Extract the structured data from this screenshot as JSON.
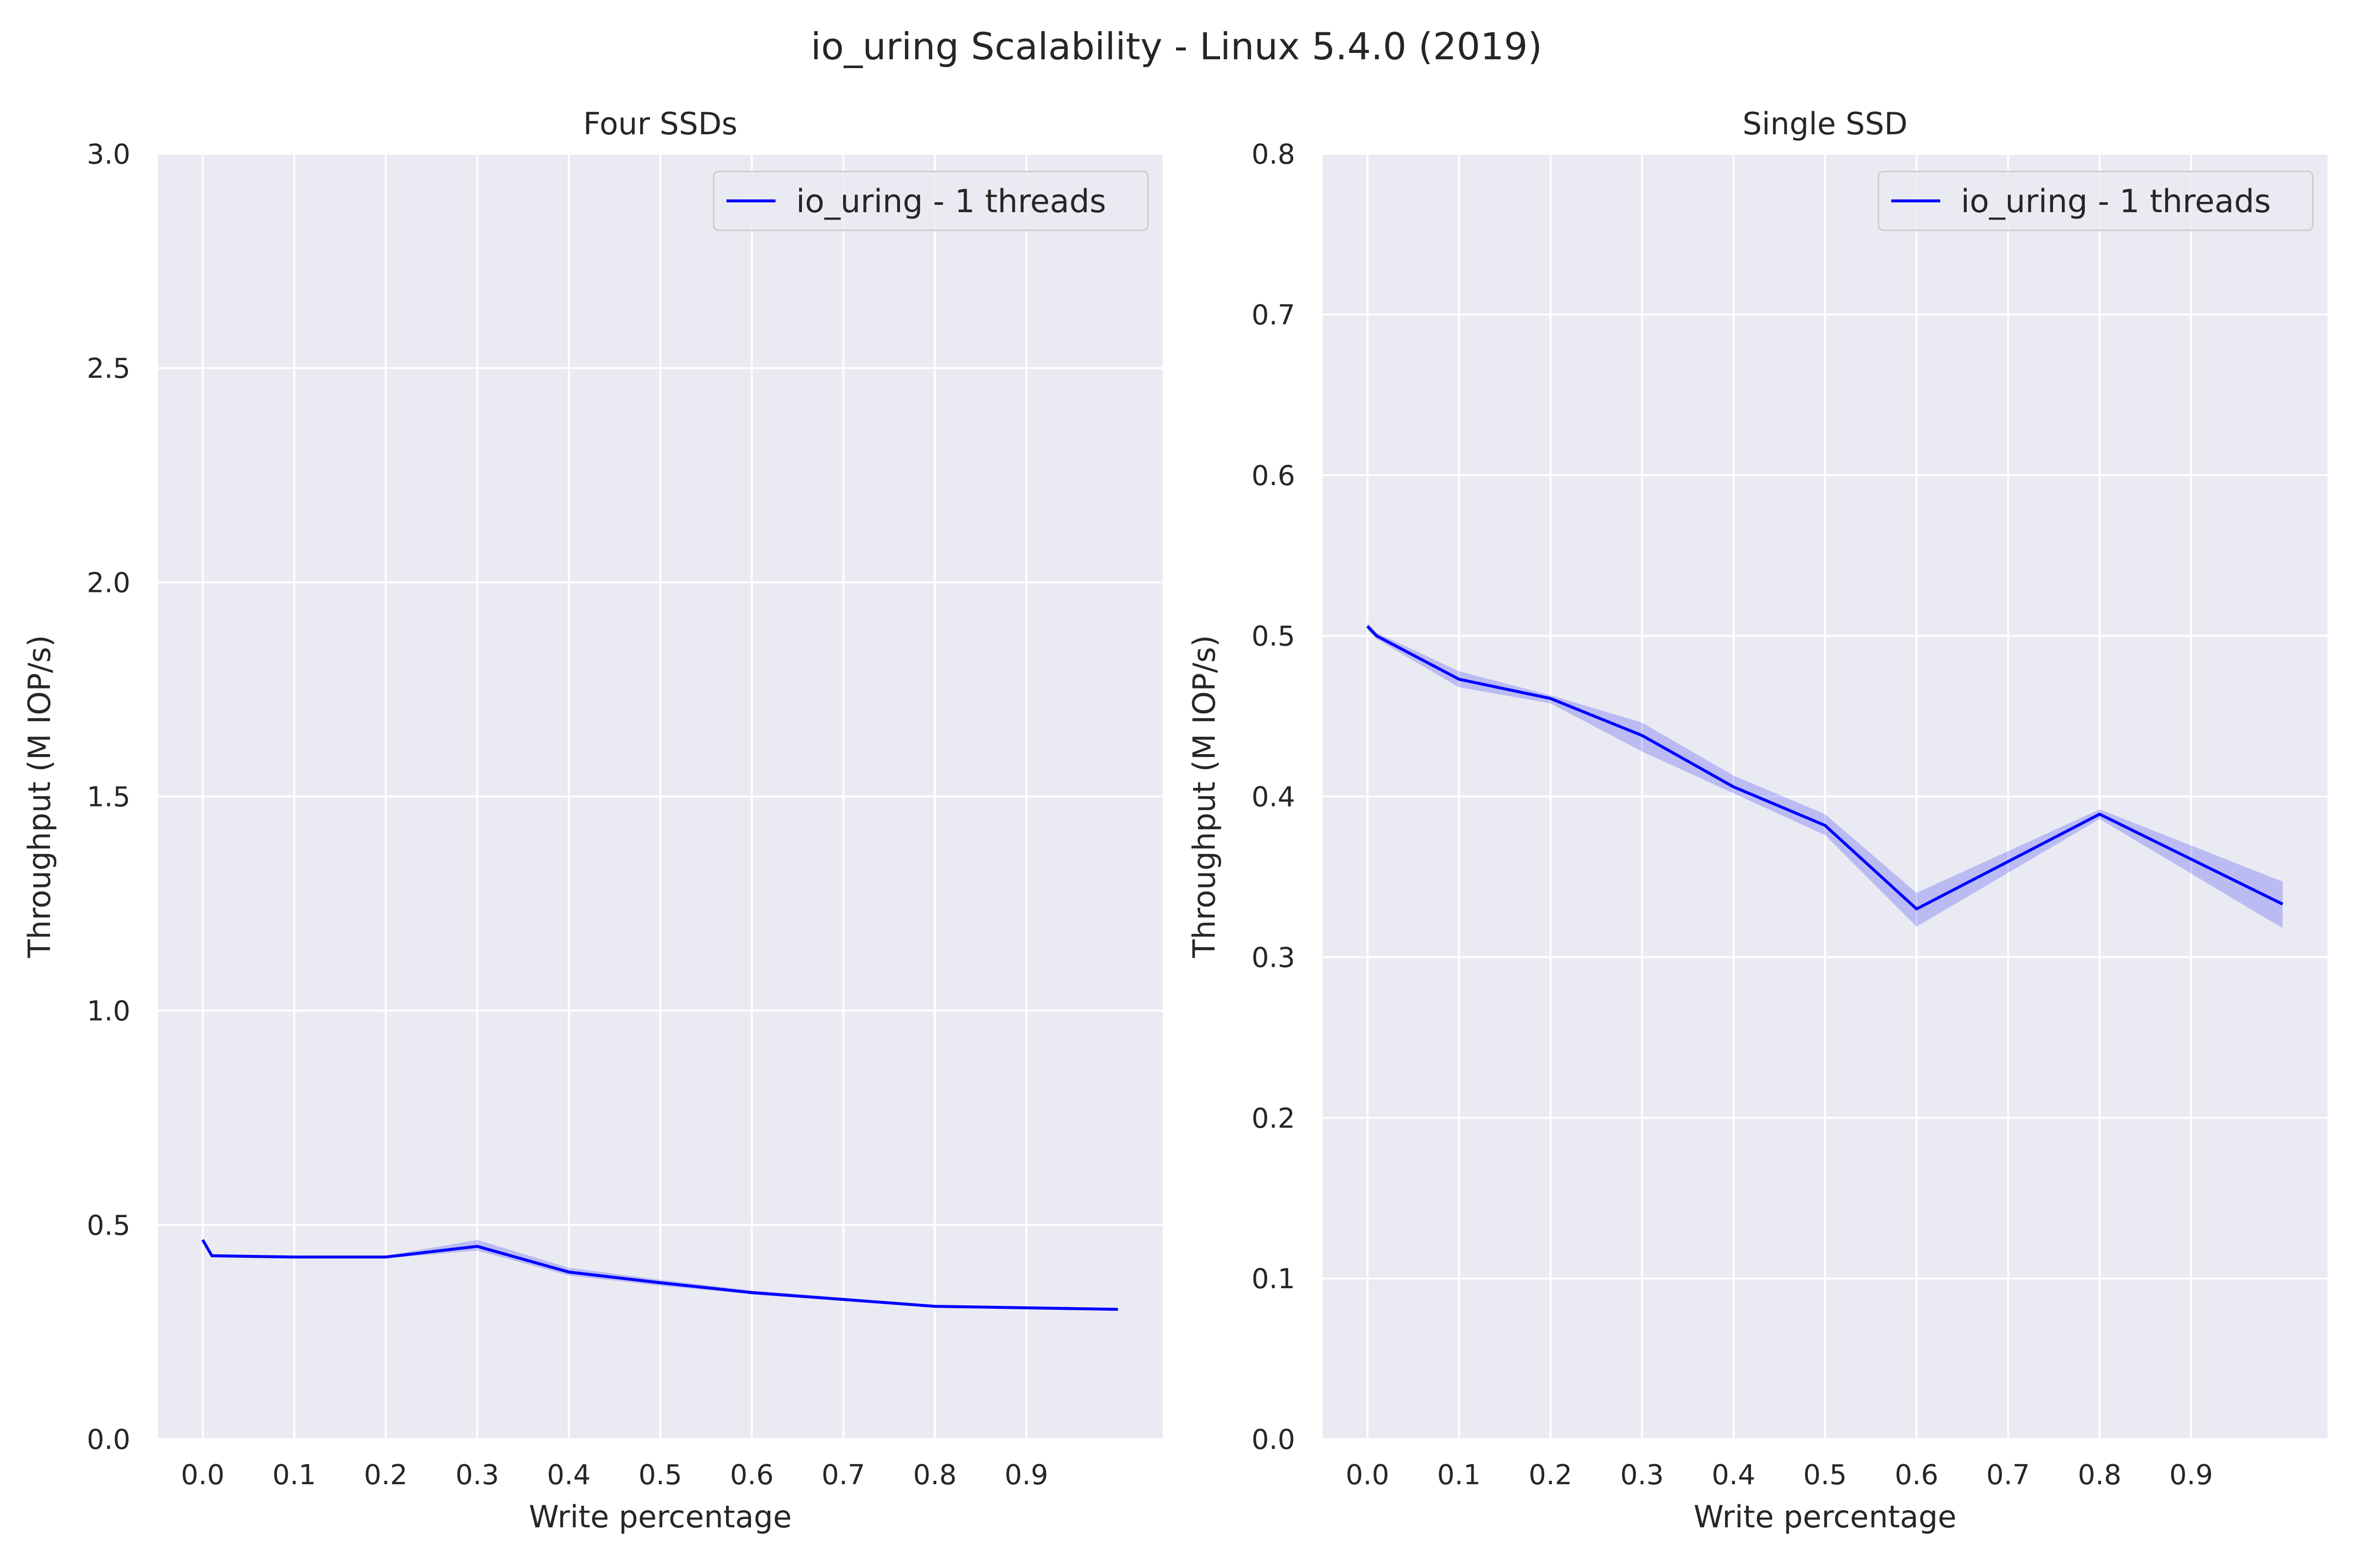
{
  "figure": {
    "title": "io_uring Scalability - Linux 5.4.0 (2019)"
  },
  "colors": {
    "plot_bg": "#eaeaf2",
    "grid": "#ffffff",
    "line": "#0000ff",
    "band": "#0000ff"
  },
  "chart_data": [
    {
      "type": "line",
      "title": "Four SSDs",
      "xlabel": "Write percentage",
      "ylabel": "Throughput (M IOP/s)",
      "xlim": [
        -0.049,
        1.049
      ],
      "ylim": [
        0,
        3.0
      ],
      "xticks": [
        "0.0",
        "0.1",
        "0.2",
        "0.3",
        "0.4",
        "0.5",
        "0.6",
        "0.7",
        "0.8",
        "0.9"
      ],
      "yticks": [
        "0.0",
        "0.5",
        "1.0",
        "1.5",
        "2.0",
        "2.5",
        "3.0"
      ],
      "grid": true,
      "legend_position": "top-right",
      "series": [
        {
          "name": "io_uring - 1 threads",
          "x": [
            0.0,
            0.01,
            0.1,
            0.2,
            0.3,
            0.4,
            0.5,
            0.6,
            0.8,
            1.0
          ],
          "y": [
            0.465,
            0.428,
            0.425,
            0.425,
            0.45,
            0.39,
            0.365,
            0.342,
            0.31,
            0.303
          ],
          "ci_low": [
            0.46,
            0.424,
            0.422,
            0.422,
            0.44,
            0.382,
            0.358,
            0.338,
            0.307,
            0.3
          ],
          "ci_high": [
            0.47,
            0.432,
            0.428,
            0.428,
            0.465,
            0.4,
            0.372,
            0.347,
            0.313,
            0.306
          ]
        }
      ]
    },
    {
      "type": "line",
      "title": "Single SSD",
      "xlabel": "Write percentage",
      "ylabel": "Throughput (M IOP/s)",
      "xlim": [
        -0.049,
        1.049
      ],
      "ylim": [
        0,
        0.8
      ],
      "xticks": [
        "0.0",
        "0.1",
        "0.2",
        "0.3",
        "0.4",
        "0.5",
        "0.6",
        "0.7",
        "0.8",
        "0.9"
      ],
      "yticks": [
        "0.0",
        "0.1",
        "0.2",
        "0.3",
        "0.4",
        "0.5",
        "0.6",
        "0.7",
        "0.8"
      ],
      "grid": true,
      "legend_position": "top-right",
      "series": [
        {
          "name": "io_uring - 1 threads",
          "x": [
            0.0,
            0.01,
            0.1,
            0.2,
            0.3,
            0.4,
            0.5,
            0.6,
            0.8,
            1.0
          ],
          "y": [
            0.506,
            0.5,
            0.473,
            0.461,
            0.438,
            0.406,
            0.382,
            0.33,
            0.389,
            0.333
          ],
          "ci_low": [
            0.504,
            0.498,
            0.468,
            0.458,
            0.428,
            0.402,
            0.376,
            0.319,
            0.386,
            0.318
          ],
          "ci_high": [
            0.508,
            0.502,
            0.478,
            0.463,
            0.446,
            0.413,
            0.389,
            0.34,
            0.392,
            0.347
          ]
        }
      ]
    }
  ]
}
